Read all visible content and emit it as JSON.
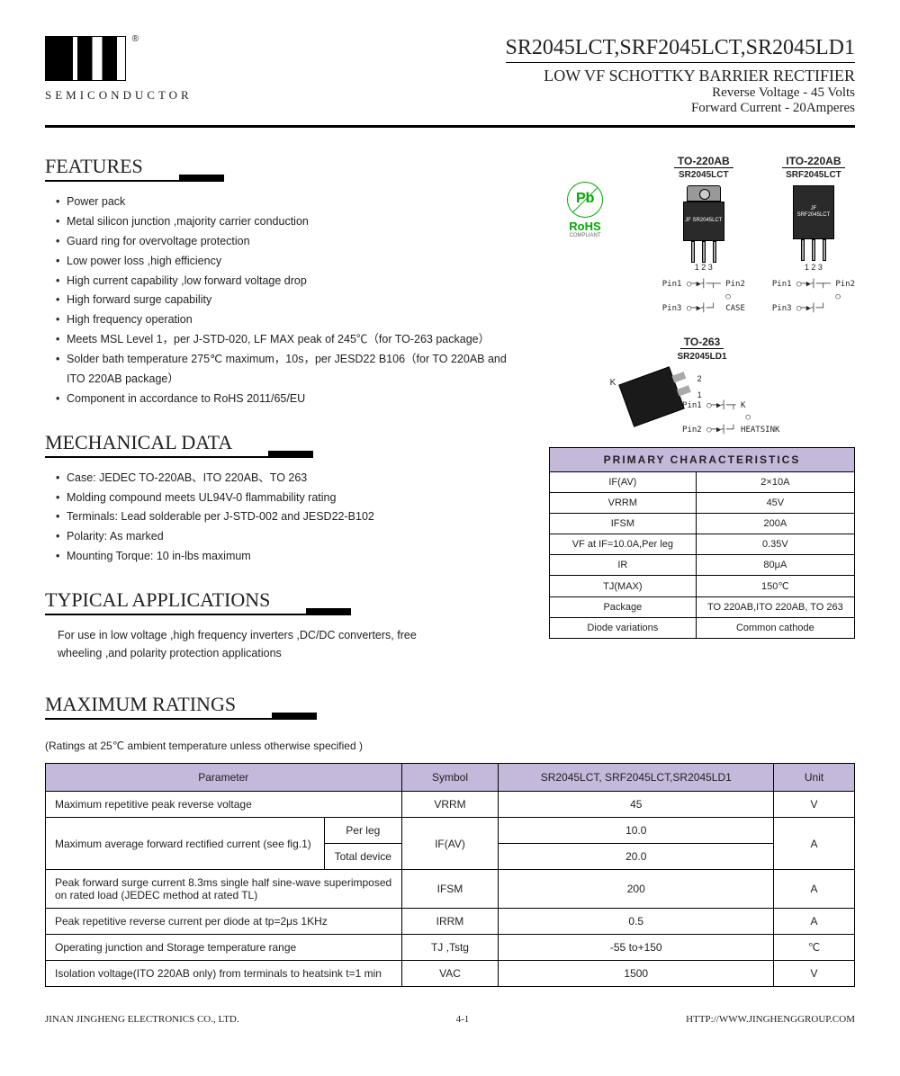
{
  "header": {
    "company": "SEMICONDUCTOR",
    "partNumbers": "SR2045LCT,SRF2045LCT,SR2045LD1",
    "subtitle": "LOW VF SCHOTTKY BARRIER RECTIFIER",
    "spec1": "Reverse Voltage - 45 Volts",
    "spec2": "Forward Current - 20Amperes"
  },
  "features": {
    "title": "FEATURES",
    "items": [
      "Power pack",
      "Metal silicon junction ,majority carrier conduction",
      "Guard ring for overvoltage protection",
      "Low power loss ,high efficiency",
      "High current capability ,low forward voltage drop",
      "High forward surge capability",
      "High frequency operation",
      "Meets MSL Level 1，per J-STD-020, LF MAX peak of 245℃（for TO-263 package）",
      "Solder bath temperature 275℃ maximum，10s，per JESD22 B106（for TO 220AB and ITO 220AB package）",
      "Component in accordance to RoHS 2011/65/EU"
    ],
    "rohsLabel": "RoHS",
    "rohsSub": "COMPLIANT"
  },
  "mechanical": {
    "title": "MECHANICAL DATA",
    "items": [
      "Case: JEDEC TO-220AB、ITO 220AB、TO 263",
      "Molding compound meets UL94V-0 flammability rating",
      "Terminals: Lead solderable per J-STD-002 and JESD22-B102",
      "Polarity: As marked",
      "Mounting Torque: 10 in-lbs maximum"
    ]
  },
  "applications": {
    "title": "TYPICAL  APPLICATIONS",
    "text": "For use in low voltage ,high frequency inverters ,DC/DC converters, free wheeling ,and polarity protection applications"
  },
  "packages": {
    "p1": {
      "title": "TO-220AB",
      "name": "SR2045LCT",
      "label": "JF\nSR2045LCT",
      "pins": "1  2  3",
      "diagram": "Pin1 ○─▶┤─┬─ Pin2\n             ○\nPin3 ○─▶┤─┘  CASE"
    },
    "p2": {
      "title": "ITO-220AB",
      "name": "SRF2045LCT",
      "label": "JF\nSRF2045LCT",
      "pins": "1  2  3",
      "diagram": "Pin1 ○─▶┤─┬─ Pin2\n             ○\nPin3 ○─▶┤─┘"
    },
    "p3": {
      "title": "TO-263",
      "name": "SR2045LD1",
      "diagram": "Pin1 ○─▶┤─┬ K\n             ○\nPin2 ○─▶┤─┘ HEATSINK"
    }
  },
  "characteristics": {
    "title": "PRIMARY CHARACTERISTICS",
    "rows": [
      [
        "IF(AV)",
        "2×10A"
      ],
      [
        "VRRM",
        "45V"
      ],
      [
        "IFSM",
        "200A"
      ],
      [
        "VF at IF=10.0A,Per leg",
        "0.35V"
      ],
      [
        "IR",
        "80μA"
      ],
      [
        "TJ(MAX)",
        "150℃"
      ],
      [
        "Package",
        "TO 220AB,ITO 220AB, TO 263"
      ],
      [
        "Diode variations",
        "Common cathode"
      ]
    ]
  },
  "ratings": {
    "title": "MAXIMUM RATINGS",
    "note": "(Ratings at 25℃ ambient temperature unless otherwise specified )",
    "headers": [
      "Parameter",
      "Symbol",
      "SR2045LCT, SRF2045LCT,SR2045LD1",
      "Unit"
    ],
    "rows": [
      {
        "param": "Maximum repetitive peak reverse voltage",
        "sub": "",
        "symbol": "VRRM",
        "value": "45",
        "unit": "V",
        "rowspan": 1
      },
      {
        "param": "Maximum average forward rectified current (see fig.1)",
        "sub": "Per leg",
        "symbol": "IF(AV)",
        "value": "10.0",
        "unit": "A",
        "rowspan": 2
      },
      {
        "param": "",
        "sub": "Total device",
        "symbol": "",
        "value": "20.0",
        "unit": "",
        "rowspan": 0
      },
      {
        "param": "Peak forward surge current 8.3ms single half sine-wave superimposed on rated load (JEDEC method at rated TL)",
        "sub": "",
        "symbol": "IFSM",
        "value": "200",
        "unit": "A",
        "rowspan": 1
      },
      {
        "param": "Peak repetitive reverse current per diode at tp=2μs 1KHz",
        "sub": "",
        "symbol": "IRRM",
        "value": "0.5",
        "unit": "A",
        "rowspan": 1
      },
      {
        "param": "Operating junction and Storage temperature range",
        "sub": "",
        "symbol": "TJ ,Tstg",
        "value": "-55 to+150",
        "unit": "℃",
        "rowspan": 1
      },
      {
        "param": "Isolation voltage(ITO 220AB only) from terminals to heatsink t=1 min",
        "sub": "",
        "symbol": "VAC",
        "value": "1500",
        "unit": "V",
        "rowspan": 1
      }
    ]
  },
  "footer": {
    "left": "JINAN JINGHENG ELECTRONICS  CO., LTD.",
    "center": "4-1",
    "right": "HTTP://WWW.JINGHENGGROUP.COM"
  },
  "colors": {
    "headerBg": "#c4b8db",
    "border": "#000000"
  }
}
